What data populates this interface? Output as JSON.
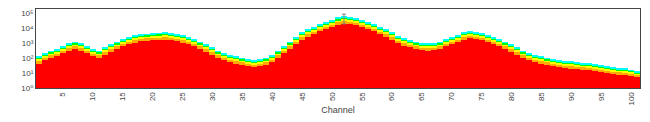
{
  "chart_data": {
    "type": "bar",
    "stacked": true,
    "log": "y",
    "grid": false,
    "xlabel": "Channel",
    "x": [
      1,
      2,
      3,
      4,
      5,
      6,
      7,
      8,
      9,
      10,
      11,
      12,
      13,
      14,
      15,
      16,
      17,
      18,
      19,
      20,
      21,
      22,
      23,
      24,
      25,
      26,
      27,
      28,
      29,
      30,
      31,
      32,
      33,
      34,
      35,
      36,
      37,
      38,
      39,
      40,
      41,
      42,
      43,
      44,
      45,
      46,
      47,
      48,
      49,
      50,
      51,
      52,
      53,
      54,
      55,
      56,
      57,
      58,
      59,
      60,
      61,
      62,
      63,
      64,
      65,
      66,
      67,
      68,
      69,
      70,
      71,
      72,
      73,
      74,
      75,
      76,
      77,
      78,
      79,
      80,
      81,
      82,
      83,
      84,
      85,
      86,
      87,
      88,
      89,
      90,
      91,
      92,
      93,
      94,
      95,
      96,
      97,
      98,
      99,
      100,
      101
    ],
    "xlim": [
      0.5,
      101.5
    ],
    "xticks": [
      5,
      10,
      15,
      20,
      25,
      30,
      35,
      40,
      45,
      50,
      55,
      60,
      65,
      70,
      75,
      80,
      85,
      90,
      95,
      100
    ],
    "ylim": [
      1,
      200000
    ],
    "yticks": [
      {
        "value": 1,
        "label": "10⁰"
      },
      {
        "value": 10,
        "label": "10¹"
      },
      {
        "value": 100,
        "label": "10²"
      },
      {
        "value": 1000,
        "label": "10³"
      },
      {
        "value": 10000,
        "label": "10⁴"
      },
      {
        "value": 100000,
        "label": "10⁵"
      }
    ],
    "series": [
      {
        "color": "#FF0000",
        "values": [
          42,
          70,
          105,
          140,
          210,
          315,
          420,
          315,
          210,
          140,
          105,
          175,
          280,
          420,
          630,
          875,
          1120,
          1330,
          1470,
          1575,
          1680,
          1750,
          1610,
          1400,
          1120,
          840,
          630,
          420,
          280,
          175,
          105,
          70,
          52.5,
          42,
          35,
          28,
          24.5,
          28,
          35,
          52.5,
          105,
          210,
          420,
          875,
          1750,
          2800,
          4200,
          6300,
          8750,
          12250,
          17500,
          21000,
          19250,
          15750,
          12250,
          8750,
          6300,
          4200,
          2800,
          1750,
          1050,
          700,
          525,
          420,
          350,
          315,
          350,
          420,
          630,
          875,
          1225,
          1750,
          2100,
          1925,
          1575,
          1225,
          875,
          630,
          420,
          280,
          175,
          105,
          70,
          52.5,
          42,
          35,
          28,
          24.5,
          21,
          19.25,
          17.5,
          15.75,
          14,
          12.25,
          10.5,
          8.75,
          7.7,
          7,
          6.3,
          5.25,
          4.2
        ]
      },
      {
        "color": "#FFAA00",
        "values": [
          24,
          40,
          60,
          80,
          120,
          180,
          240,
          180,
          120,
          80,
          60,
          100,
          160,
          240,
          360,
          500,
          640,
          760,
          840,
          900,
          960,
          1000,
          920,
          800,
          640,
          480,
          360,
          240,
          160,
          100,
          60,
          40,
          30,
          24,
          20,
          16,
          14,
          16,
          20,
          30,
          60,
          120,
          240,
          500,
          1000,
          1600,
          2400,
          3600,
          5000,
          7000,
          10000,
          12000,
          11000,
          9000,
          7000,
          5000,
          3600,
          2400,
          1600,
          1000,
          600,
          400,
          300,
          240,
          200,
          180,
          200,
          240,
          360,
          500,
          700,
          1000,
          1200,
          1100,
          900,
          700,
          500,
          360,
          240,
          160,
          100,
          60,
          40,
          30,
          24,
          20,
          16,
          14,
          12,
          11,
          10,
          9,
          8,
          7,
          6,
          5,
          4.4,
          4,
          3.6,
          3,
          2.4
        ]
      },
      {
        "color": "#FFFF00",
        "values": [
          21.6,
          36,
          54,
          72,
          108,
          162,
          216,
          162,
          108,
          72,
          54,
          90,
          144,
          216,
          324,
          450,
          576,
          684,
          756,
          810,
          864,
          900,
          828,
          720,
          576,
          432,
          324,
          216,
          144,
          90,
          54,
          36,
          27,
          21.6,
          18,
          14.4,
          12.6,
          14.4,
          18,
          27,
          54,
          108,
          216,
          450,
          900,
          1440,
          2160,
          3240,
          4500,
          6300,
          9000,
          10800,
          9900,
          8100,
          6300,
          4500,
          3240,
          2160,
          1440,
          900,
          540,
          360,
          270,
          216,
          180,
          162,
          180,
          216,
          324,
          450,
          630,
          900,
          1080,
          990,
          810,
          630,
          450,
          324,
          216,
          144,
          90,
          54,
          36,
          27,
          21.6,
          18,
          14.4,
          12.6,
          10.8,
          9.9,
          9,
          8.1,
          7.2,
          6.3,
          5.4,
          4.5,
          3.96,
          3.6,
          3.24,
          2.7,
          2.16
        ]
      },
      {
        "color": "#00FF00",
        "values": [
          18,
          30,
          45,
          60,
          90,
          135,
          180,
          135,
          90,
          60,
          45,
          75,
          120,
          180,
          270,
          375,
          480,
          570,
          630,
          675,
          720,
          750,
          690,
          600,
          480,
          360,
          270,
          180,
          120,
          75,
          45,
          30,
          22.5,
          18,
          15,
          12,
          10.5,
          12,
          15,
          22.5,
          45,
          90,
          180,
          375,
          750,
          1200,
          1800,
          2700,
          3750,
          5250,
          7500,
          9000,
          8250,
          6750,
          5250,
          3750,
          2700,
          1800,
          1200,
          750,
          450,
          300,
          225,
          180,
          150,
          135,
          150,
          180,
          270,
          375,
          525,
          750,
          900,
          825,
          675,
          525,
          375,
          270,
          180,
          120,
          75,
          45,
          30,
          22.5,
          18,
          15,
          12,
          10.5,
          9,
          8.25,
          7.5,
          6.75,
          6,
          5.25,
          4.5,
          3.75,
          3.3,
          3,
          2.7,
          2.25,
          1.8
        ]
      },
      {
        "color": "#00FFFF",
        "values": [
          14.4,
          24,
          36,
          48,
          72,
          108,
          144,
          108,
          72,
          48,
          36,
          60,
          96,
          144,
          216,
          300,
          384,
          456,
          504,
          540,
          576,
          600,
          552,
          480,
          384,
          288,
          216,
          144,
          96,
          60,
          36,
          24,
          18,
          14.4,
          12,
          9.6,
          8.4,
          9.6,
          12,
          18,
          36,
          72,
          144,
          300,
          600,
          960,
          1440,
          2160,
          3000,
          4200,
          6000,
          7200,
          6600,
          5400,
          4200,
          3000,
          2160,
          1440,
          960,
          600,
          360,
          240,
          180,
          144,
          120,
          108,
          120,
          144,
          216,
          300,
          420,
          600,
          720,
          660,
          540,
          420,
          300,
          216,
          144,
          96,
          60,
          36,
          24,
          18,
          14.4,
          12,
          9.6,
          8.4,
          7.2,
          6.6,
          6,
          5.4,
          4.8,
          4.2,
          3.6,
          3,
          2.64,
          2.4,
          2.16,
          1.8,
          1.44
        ]
      }
    ],
    "error_bars": [
      {
        "x": 52,
        "y": 60000,
        "minus": 40000,
        "plus": 30000,
        "color": "gray"
      }
    ]
  }
}
